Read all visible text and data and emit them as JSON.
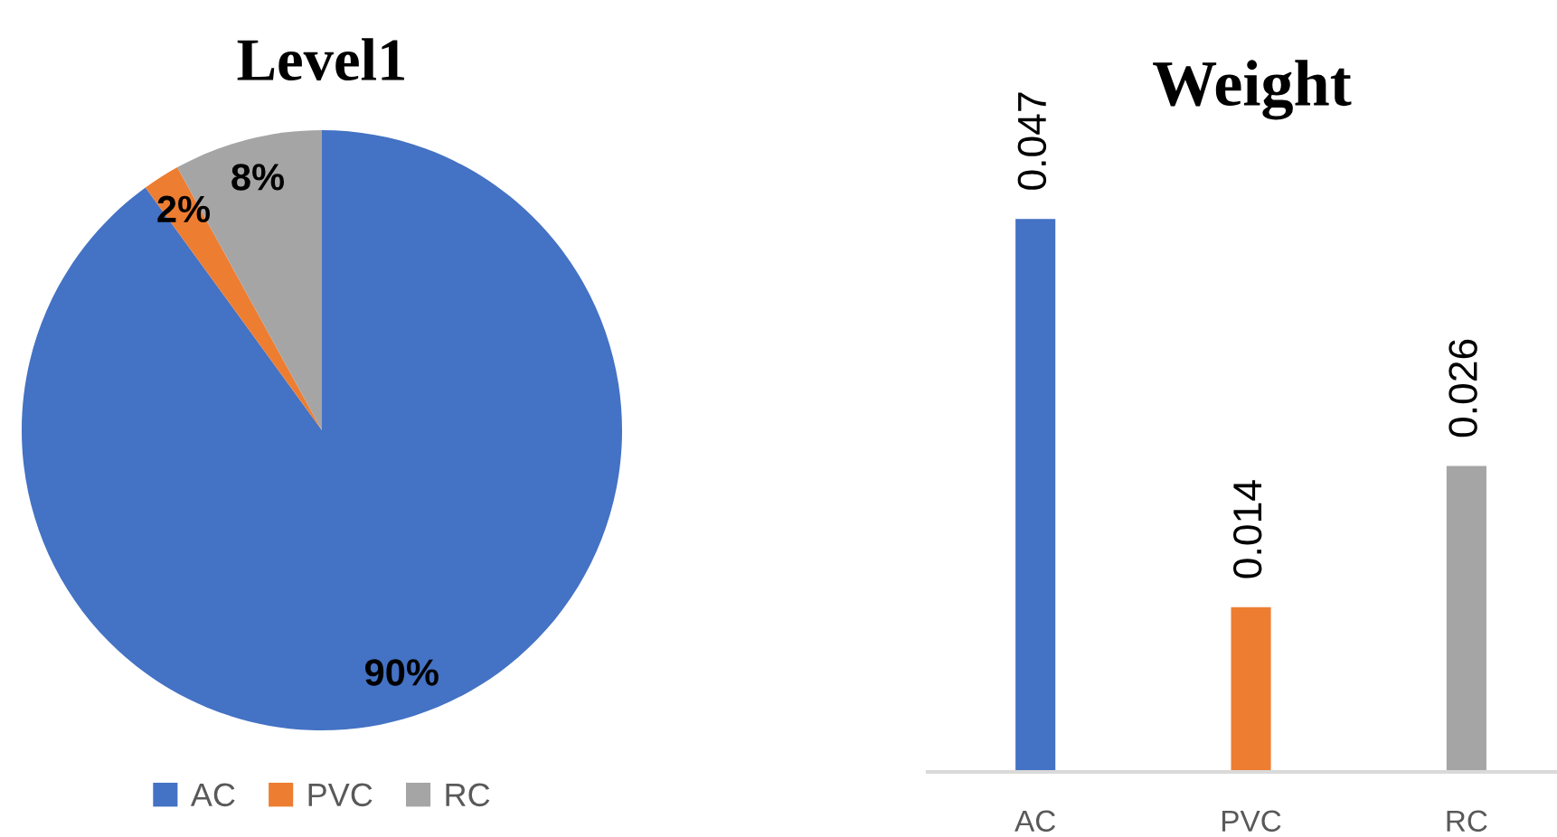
{
  "chart_data": [
    {
      "type": "pie",
      "title": "Level1",
      "categories": [
        "AC",
        "PVC",
        "RC"
      ],
      "values": [
        90,
        2,
        8
      ],
      "colors": [
        "#4472c4",
        "#ed7d31",
        "#a5a5a5"
      ],
      "value_labels": [
        "90%",
        "2%",
        "8%"
      ],
      "legend": "bottom"
    },
    {
      "type": "bar",
      "title": "Weight",
      "categories": [
        "AC",
        "PVC",
        "RC"
      ],
      "values": [
        0.047,
        0.014,
        0.026
      ],
      "colors": [
        "#4472c4",
        "#ed7d31",
        "#a5a5a5"
      ],
      "data_labels": true,
      "tick_labels": "x"
    }
  ]
}
